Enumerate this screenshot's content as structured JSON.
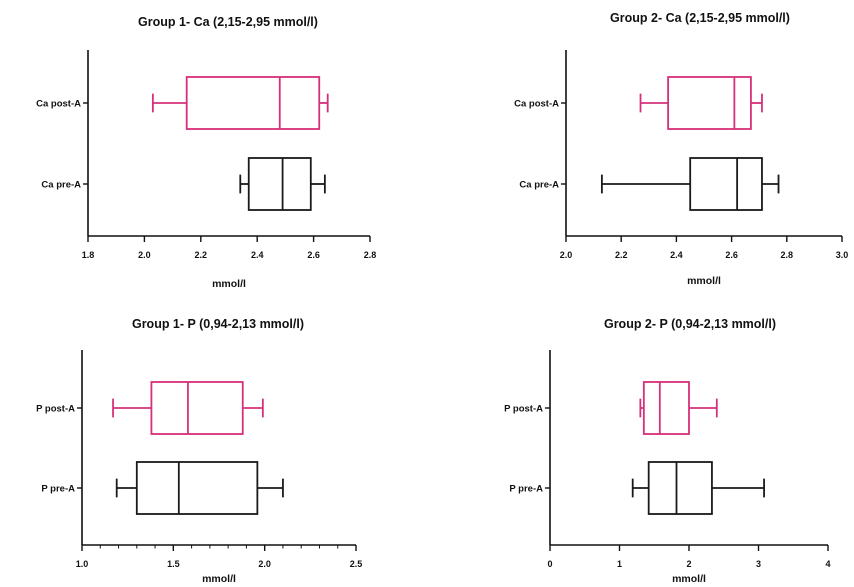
{
  "colors": {
    "post": "#d6307a",
    "pre": "#1a1a1a",
    "axis": "#111111"
  },
  "chart_data": [
    {
      "type": "boxplot",
      "title": "Group 1- Ca (2,15-2,95 mmol/l)",
      "xlabel": "mmol/l",
      "xlim": [
        1.8,
        2.8
      ],
      "xticks": [
        "1.8",
        "2.0",
        "2.2",
        "2.4",
        "2.6",
        "2.8"
      ],
      "categories": [
        "Ca post-A",
        "Ca pre-A"
      ],
      "series": [
        {
          "category": "Ca post-A",
          "color": "#d6307a",
          "min": 2.03,
          "q1": 2.15,
          "median": 2.48,
          "q3": 2.62,
          "max": 2.65
        },
        {
          "category": "Ca pre-A",
          "color": "#1a1a1a",
          "min": 2.34,
          "q1": 2.37,
          "median": 2.49,
          "q3": 2.59,
          "max": 2.64
        }
      ]
    },
    {
      "type": "boxplot",
      "title": "Group 2- Ca (2,15-2,95 mmol/l)",
      "xlabel": "mmol/l",
      "xlim": [
        2.0,
        3.0
      ],
      "xticks": [
        "2.0",
        "2.2",
        "2.4",
        "2.6",
        "2.8",
        "3.0"
      ],
      "categories": [
        "Ca post-A",
        "Ca pre-A"
      ],
      "series": [
        {
          "category": "Ca post-A",
          "color": "#d6307a",
          "min": 2.27,
          "q1": 2.37,
          "median": 2.61,
          "q3": 2.67,
          "max": 2.71
        },
        {
          "category": "Ca pre-A",
          "color": "#1a1a1a",
          "min": 2.13,
          "q1": 2.45,
          "median": 2.62,
          "q3": 2.71,
          "max": 2.77
        }
      ]
    },
    {
      "type": "boxplot",
      "title": "Group 1- P (0,94-2,13 mmol/l)",
      "xlabel": "mmol/l",
      "xlim": [
        1.0,
        2.5
      ],
      "xticks": [
        "1.0",
        "1.5",
        "2.0",
        "2.5"
      ],
      "minor_ticks": true,
      "categories": [
        "P post-A",
        "P pre-A"
      ],
      "series": [
        {
          "category": "P post-A",
          "color": "#d6307a",
          "min": 1.17,
          "q1": 1.38,
          "median": 1.58,
          "q3": 1.88,
          "max": 1.99
        },
        {
          "category": "P pre-A",
          "color": "#1a1a1a",
          "min": 1.19,
          "q1": 1.3,
          "median": 1.53,
          "q3": 1.96,
          "max": 2.1
        }
      ]
    },
    {
      "type": "boxplot",
      "title": "Group 2- P (0,94-2,13 mmol/l)",
      "xlabel": "mmol/l",
      "xlim": [
        0,
        4
      ],
      "xticks": [
        "0",
        "1",
        "2",
        "3",
        "4"
      ],
      "categories": [
        "P post-A",
        "P pre-A"
      ],
      "series": [
        {
          "category": "P post-A",
          "color": "#d6307a",
          "min": 1.3,
          "q1": 1.35,
          "median": 1.58,
          "q3": 2.0,
          "max": 2.4
        },
        {
          "category": "P pre-A",
          "color": "#1a1a1a",
          "min": 1.19,
          "q1": 1.42,
          "median": 1.82,
          "q3": 2.33,
          "max": 3.08
        }
      ]
    }
  ]
}
